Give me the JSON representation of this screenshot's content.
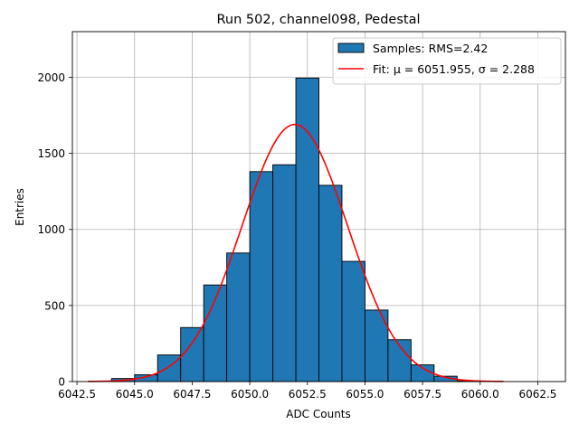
{
  "chart_data": {
    "type": "bar",
    "title": "Run 502, channel098, Pedestal",
    "xlabel": "ADC Counts",
    "ylabel": "Entries",
    "xlim": [
      6042.3,
      6063.7
    ],
    "ylim": [
      0,
      2300
    ],
    "grid": true,
    "legend_position": "top-right",
    "x_ticks": [
      6042.5,
      6045.0,
      6047.5,
      6050.0,
      6052.5,
      6055.0,
      6057.5,
      6060.0,
      6062.5
    ],
    "x_tick_labels": [
      "6042.5",
      "6045.0",
      "6047.5",
      "6050.0",
      "6052.5",
      "6055.0",
      "6057.5",
      "6060.0",
      "6062.5"
    ],
    "y_ticks": [
      0,
      500,
      1000,
      1500,
      2000
    ],
    "y_tick_labels": [
      "0",
      "500",
      "1000",
      "1500",
      "2000"
    ],
    "histogram": {
      "name": "Samples: RMS=2.42",
      "color": "#1f77b4",
      "edgecolor": "#000000",
      "bin_edges": [
        6043,
        6044,
        6045,
        6046,
        6047,
        6048,
        6049,
        6050,
        6051,
        6052,
        6053,
        6054,
        6055,
        6056,
        6057,
        6058,
        6059,
        6060,
        6061
      ],
      "counts": [
        3,
        20,
        45,
        175,
        355,
        635,
        845,
        1380,
        1425,
        1995,
        1290,
        790,
        470,
        275,
        110,
        35,
        5,
        2
      ]
    },
    "fit": {
      "name": "Fit: μ = 6051.955, σ = 2.288",
      "color": "#ff0000",
      "mu": 6051.955,
      "sigma": 2.288,
      "amplitude": 1690,
      "x_range": [
        6043,
        6061
      ]
    }
  }
}
